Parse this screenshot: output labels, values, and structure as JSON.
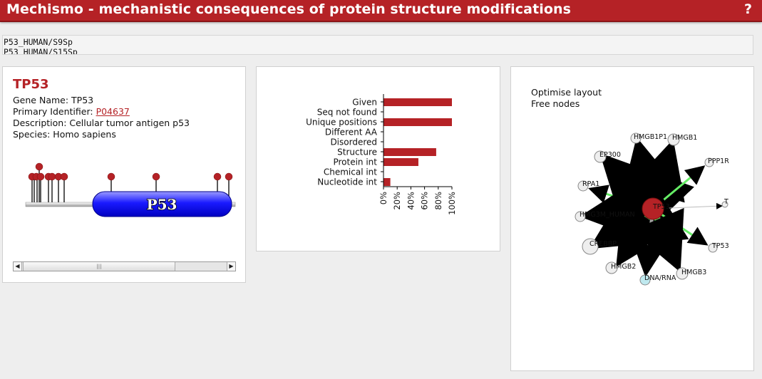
{
  "header": {
    "title": "Mechismo - mechanistic consequences of protein structure modifications",
    "help_label": "?"
  },
  "mutations": [
    "P53_HUMAN/S9Sp",
    "P53_HUMAN/S15Sp"
  ],
  "protein": {
    "title": "TP53",
    "gene_name_label": "Gene Name: ",
    "gene_name": "TP53",
    "primary_id_label": "Primary Identifier: ",
    "primary_id": "P04637",
    "description_label": "Description: ",
    "description": "Cellular tumor antigen p53",
    "species_label": "Species: ",
    "species": "Homo sapiens",
    "domain_label": "P53",
    "colors": {
      "lollipop": "#b52226",
      "domain": "#1212e8"
    }
  },
  "stats": {
    "chart_data": {
      "type": "bar",
      "orientation": "horizontal",
      "categories": [
        "Given",
        "Seq not found",
        "Unique positions",
        "Different AA",
        "Disordered",
        "Structure",
        "Protein int",
        "Chemical int",
        "Nucleotide int"
      ],
      "values": [
        100,
        0,
        100,
        0,
        0,
        77,
        51,
        0,
        10
      ],
      "xlim": [
        0,
        100
      ],
      "xticks": [
        "0%",
        "20%",
        "40%",
        "60%",
        "80%",
        "100%"
      ],
      "bar_color": "#b52226"
    }
  },
  "network": {
    "optimise_label": "Optimise layout",
    "free_nodes_label": "Free nodes",
    "center_label": "TP53",
    "nodes": [
      "HMGB1P1",
      "HMGB1",
      "EP300",
      "PPP1R",
      "RPA1",
      "T",
      "HMG3M_HUMAN",
      "CREBBP",
      "TP53",
      "HMGB2",
      "DNA/RNA",
      "HMGB3"
    ],
    "colors": {
      "edge": "#66ee66",
      "center": "#b52226",
      "dna": "#bfe9ef"
    }
  }
}
